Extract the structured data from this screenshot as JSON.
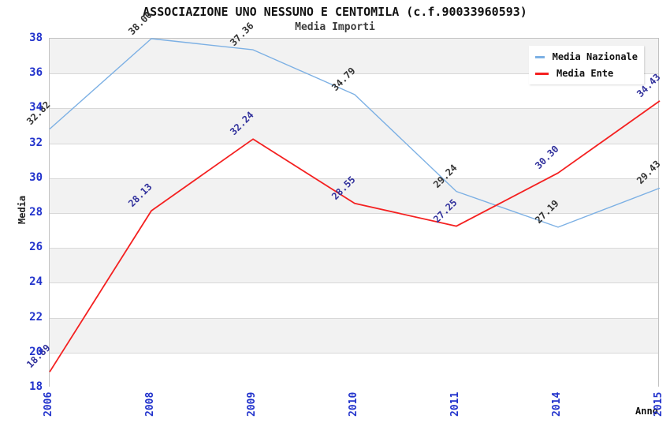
{
  "chart": {
    "title": "ASSOCIAZIONE UNO NESSUNO E CENTOMILA (c.f.90033960593)",
    "subtitle": "Media Importi",
    "ylabel": "Media",
    "xlabel": "Anno"
  },
  "chart_data": {
    "type": "line",
    "title": "ASSOCIAZIONE UNO NESSUNO E CENTOMILA (c.f.90033960593)",
    "subtitle": "Media Importi",
    "xlabel": "Anno",
    "ylabel": "Media",
    "categories": [
      "2006",
      "2008",
      "2009",
      "2010",
      "2011",
      "2014",
      "2015"
    ],
    "series": [
      {
        "name": "Media Nazionale",
        "color": "#7cb0e4",
        "label_color": "#333333",
        "stroke_width": 1.4,
        "values": [
          32.82,
          38.0,
          37.36,
          34.79,
          29.24,
          27.19,
          29.43
        ]
      },
      {
        "name": "Media Ente",
        "color": "#f42020",
        "label_color": "#31319c",
        "stroke_width": 1.8,
        "values": [
          18.89,
          28.13,
          32.24,
          28.55,
          27.25,
          30.3,
          34.43
        ]
      }
    ],
    "ylim": [
      18,
      38
    ],
    "yticks": [
      18,
      20,
      22,
      24,
      26,
      28,
      30,
      32,
      34,
      36,
      38
    ],
    "value_label_decimals": 2,
    "legend_position": "top-right",
    "grid": "horizontal-bands",
    "band_colors": [
      "#f2f2f2",
      "#ffffff"
    ],
    "grid_color": "#d8d8d8",
    "tick_label_color": "#2233cc"
  }
}
